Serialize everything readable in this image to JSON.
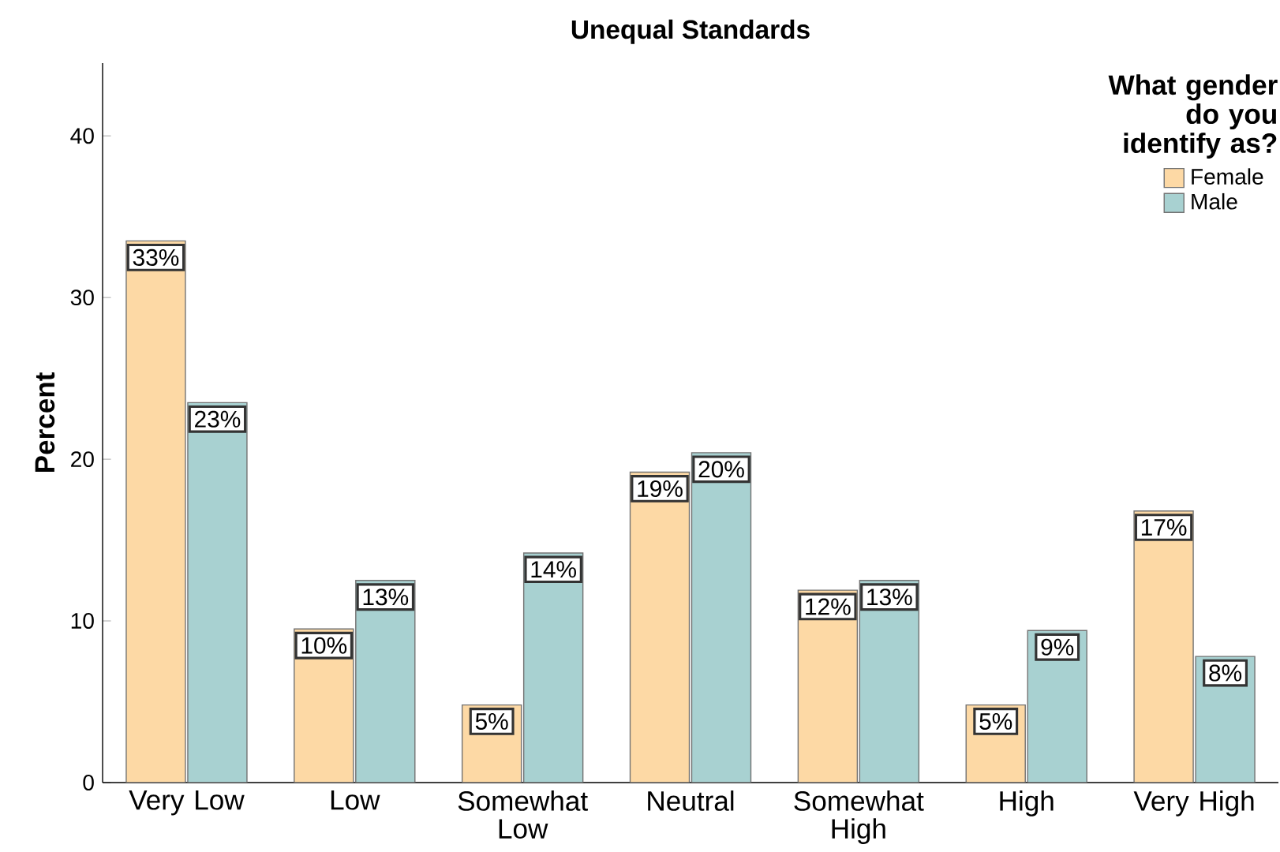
{
  "chart_data": {
    "type": "bar",
    "title": "Unequal Standards",
    "ylabel": "Percent",
    "legend_title": "What gender do you identify as?",
    "categories": [
      "Very Low",
      "Low",
      "Somewhat Low",
      "Neutral",
      "Somewhat High",
      "High",
      "Very High"
    ],
    "series": [
      {
        "name": "Female",
        "color": "#fdd9a5",
        "values": [
          33.5,
          9.5,
          4.8,
          19.2,
          11.9,
          4.8,
          16.8
        ],
        "value_labels": [
          "33%",
          "10%",
          "5%",
          "19%",
          "12%",
          "5%",
          "17%"
        ]
      },
      {
        "name": "Male",
        "color": "#a8d1d1",
        "values": [
          23.5,
          12.5,
          14.2,
          20.4,
          12.5,
          9.4,
          7.8
        ],
        "value_labels": [
          "23%",
          "13%",
          "14%",
          "20%",
          "13%",
          "9%",
          "8%"
        ]
      }
    ],
    "ylim": [
      0,
      44.5
    ],
    "yticks": [
      0,
      10,
      20,
      30,
      40
    ],
    "legend": "top right"
  }
}
